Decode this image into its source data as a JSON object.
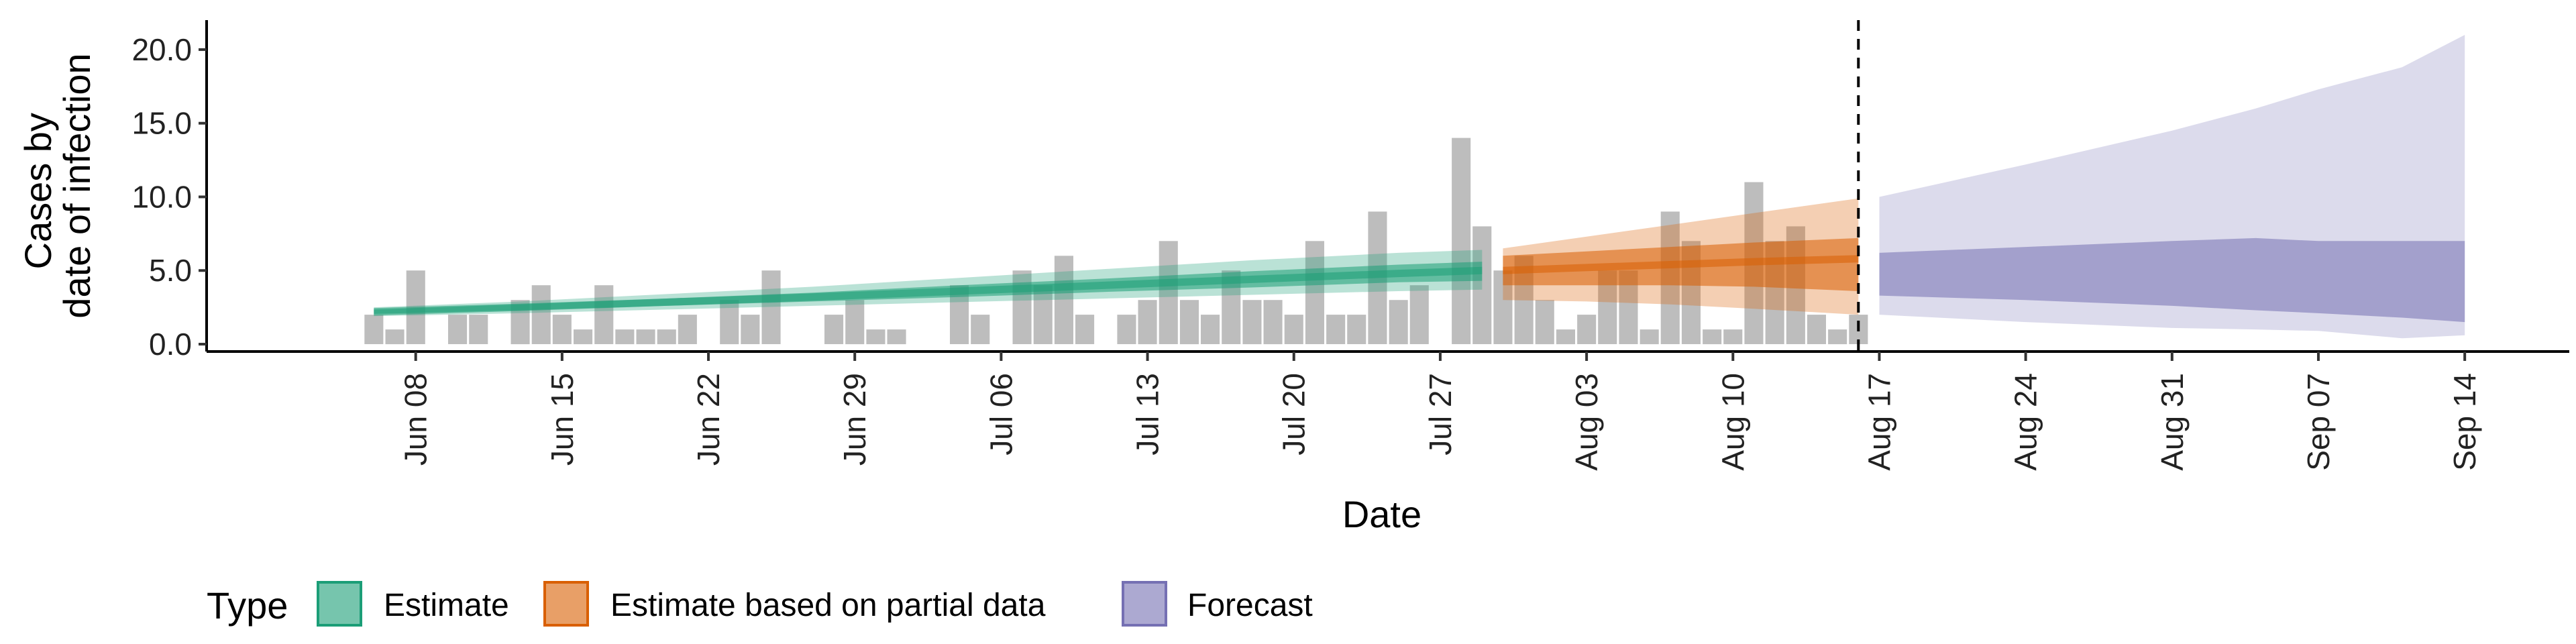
{
  "chart_data": {
    "type": "bar",
    "xlabel": "Date",
    "ylabel_lines": [
      "Cases by",
      "date of infection"
    ],
    "ylim": [
      -0.5,
      22
    ],
    "y_ticks": [
      0,
      5,
      10,
      15,
      20
    ],
    "y_tick_labels": [
      "0.0",
      "5.0",
      "10.0",
      "15.0",
      "20.0"
    ],
    "x_range": [
      "2020-05-29",
      "2020-09-19"
    ],
    "x_ticks": [
      "2020-06-08",
      "2020-06-15",
      "2020-06-22",
      "2020-06-29",
      "2020-07-06",
      "2020-07-13",
      "2020-07-20",
      "2020-07-27",
      "2020-08-03",
      "2020-08-10",
      "2020-08-17",
      "2020-08-24",
      "2020-08-31",
      "2020-09-07",
      "2020-09-14"
    ],
    "x_tick_labels": [
      "Jun 08",
      "Jun 15",
      "Jun 22",
      "Jun 29",
      "Jul 06",
      "Jul 13",
      "Jul 20",
      "Jul 27",
      "Aug 03",
      "Aug 10",
      "Aug 17",
      "Aug 24",
      "Aug 31",
      "Sep 07",
      "Sep 14"
    ],
    "vline_date": "2020-08-16",
    "colors": {
      "bars": "#bdbdbd",
      "estimate": "#1b9e77",
      "partial": "#d95f02",
      "forecast": "#7570b3"
    },
    "bars": {
      "start_date": "2020-06-06",
      "values": [
        2,
        1,
        5,
        0,
        2,
        2,
        0,
        3,
        4,
        2,
        1,
        4,
        1,
        1,
        1,
        2,
        0,
        3,
        2,
        5,
        0,
        0,
        2,
        3,
        1,
        1,
        0,
        0,
        4,
        2,
        0,
        5,
        4,
        6,
        2,
        0,
        2,
        3,
        7,
        3,
        2,
        5,
        3,
        3,
        2,
        7,
        2,
        2,
        9,
        3,
        4,
        0,
        14,
        8,
        5,
        6,
        3,
        1,
        2,
        5,
        5,
        1,
        9,
        7,
        1,
        1,
        11,
        7,
        8,
        2,
        1,
        2
      ]
    },
    "series": [
      {
        "name": "Estimate",
        "x": [
          "2020-06-06",
          "2020-06-13",
          "2020-06-20",
          "2020-06-27",
          "2020-07-04",
          "2020-07-11",
          "2020-07-18",
          "2020-07-25",
          "2020-07-29"
        ],
        "median": [
          2.2,
          2.5,
          2.85,
          3.2,
          3.6,
          4.0,
          4.4,
          4.8,
          5.0
        ],
        "inner_low": [
          2.05,
          2.3,
          2.6,
          2.9,
          3.2,
          3.55,
          3.85,
          4.2,
          4.3
        ],
        "inner_high": [
          2.35,
          2.7,
          3.1,
          3.5,
          4.0,
          4.45,
          4.95,
          5.4,
          5.6
        ],
        "outer_low": [
          1.9,
          2.1,
          2.35,
          2.6,
          2.85,
          3.1,
          3.35,
          3.6,
          3.7
        ],
        "outer_high": [
          2.5,
          2.9,
          3.4,
          3.9,
          4.5,
          5.1,
          5.7,
          6.2,
          6.4
        ]
      },
      {
        "name": "Estimate based on partial data",
        "x": [
          "2020-07-30",
          "2020-08-03",
          "2020-08-07",
          "2020-08-11",
          "2020-08-16"
        ],
        "median": [
          5.0,
          5.2,
          5.4,
          5.6,
          5.8
        ],
        "inner_low": [
          4.0,
          4.0,
          4.0,
          3.9,
          3.6
        ],
        "inner_high": [
          6.0,
          6.3,
          6.6,
          6.9,
          7.2
        ],
        "outer_low": [
          3.0,
          2.9,
          2.7,
          2.4,
          2.0
        ],
        "outer_high": [
          6.5,
          7.3,
          8.1,
          8.9,
          9.9
        ]
      },
      {
        "name": "Forecast",
        "x": [
          "2020-08-17",
          "2020-08-24",
          "2020-08-31",
          "2020-09-04",
          "2020-09-07",
          "2020-09-11",
          "2020-09-14"
        ],
        "inner_low": [
          3.3,
          3.0,
          2.6,
          2.3,
          2.1,
          1.8,
          1.5
        ],
        "inner_high": [
          6.2,
          6.6,
          7.0,
          7.2,
          7.0,
          7.0,
          7.0
        ],
        "outer_low": [
          2.0,
          1.5,
          1.1,
          1.0,
          0.9,
          0.4,
          0.6
        ],
        "outer_high": [
          10.0,
          12.2,
          14.5,
          16.0,
          17.3,
          18.8,
          21.0
        ]
      }
    ],
    "legend": {
      "title": "Type",
      "position": "bottom",
      "items": [
        "Estimate",
        "Estimate based on partial data",
        "Forecast"
      ]
    }
  }
}
